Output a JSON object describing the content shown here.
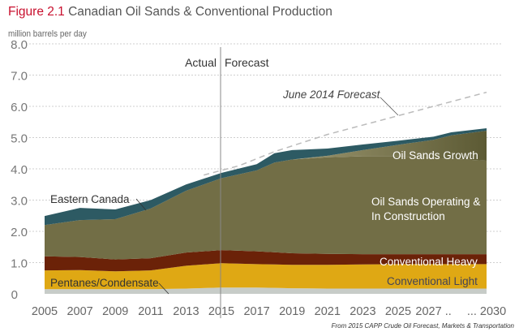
{
  "title": {
    "figure": "Figure 2.1",
    "text": "Canadian Oil Sands & Conventional Production"
  },
  "source": "From 2015 CAPP Crude Oil Forecast, Markets & Transportation",
  "chart_data": {
    "type": "area",
    "stacked": true,
    "title": "Figure 2.1 Canadian Oil Sands & Conventional Production",
    "ylabel": "million barrels per day",
    "xlabel": "",
    "ylim": [
      0,
      8
    ],
    "yticks": [
      0,
      1,
      2,
      3,
      4,
      5,
      6,
      7,
      8
    ],
    "ytick_labels": [
      "0",
      "1.0",
      "2.0",
      "3.0",
      "4.0",
      "5.0",
      "6.0",
      "7.0",
      "8.0"
    ],
    "xlim": [
      2005,
      2030
    ],
    "xticks": [
      2005,
      2007,
      2009,
      2011,
      2013,
      2015,
      2017,
      2019,
      2021,
      2023,
      2025,
      2027,
      2030
    ],
    "xtick_labels": [
      "2005",
      "2007",
      "2009",
      "2011",
      "2013",
      "2015",
      "2017",
      "2019",
      "2021",
      "2023",
      "2025",
      "2027 ..",
      "... 2030"
    ],
    "grid": true,
    "divider": {
      "year": 2015,
      "left_label": "Actual",
      "right_label": "Forecast"
    },
    "x": [
      2005,
      2007,
      2009,
      2011,
      2013,
      2015,
      2017,
      2018,
      2019,
      2021,
      2023,
      2025,
      2027,
      2028,
      2030
    ],
    "series": [
      {
        "name": "Pentanes/Condensate",
        "color": "#c7ccc8",
        "values": [
          0.15,
          0.15,
          0.15,
          0.15,
          0.17,
          0.2,
          0.2,
          0.19,
          0.18,
          0.17,
          0.17,
          0.17,
          0.17,
          0.17,
          0.17
        ]
      },
      {
        "name": "Conventional Light",
        "color": "#dfa814",
        "values": [
          0.6,
          0.61,
          0.57,
          0.6,
          0.73,
          0.78,
          0.75,
          0.75,
          0.75,
          0.76,
          0.77,
          0.78,
          0.78,
          0.78,
          0.78
        ]
      },
      {
        "name": "Conventional Heavy",
        "color": "#6b2208",
        "values": [
          0.45,
          0.42,
          0.38,
          0.39,
          0.42,
          0.42,
          0.41,
          0.39,
          0.37,
          0.35,
          0.33,
          0.32,
          0.32,
          0.32,
          0.32
        ]
      },
      {
        "name": "Oil Sands Operating & In Construction",
        "color": "#726e46",
        "values": [
          1.0,
          1.18,
          1.29,
          1.59,
          1.98,
          2.3,
          2.59,
          2.87,
          3.0,
          3.09,
          3.13,
          3.13,
          3.08,
          3.05,
          2.99
        ]
      },
      {
        "name": "Oil Sands Growth",
        "color": "#8f8a62",
        "values": [
          0,
          0,
          0,
          0,
          0,
          0,
          0,
          0,
          0,
          0.05,
          0.2,
          0.37,
          0.58,
          0.75,
          0.96
        ]
      },
      {
        "name": "Eastern Canada",
        "color": "#2d5a63",
        "values": [
          0.29,
          0.39,
          0.31,
          0.27,
          0.2,
          0.17,
          0.2,
          0.3,
          0.3,
          0.23,
          0.18,
          0.13,
          0.1,
          0.1,
          0.08
        ]
      }
    ],
    "reference_line": {
      "name": "June 2014 Forecast",
      "color": "#bbbbbb",
      "x": [
        2014,
        2016,
        2018,
        2021,
        2025,
        2027,
        2030
      ],
      "values": [
        3.8,
        4.1,
        4.55,
        5.1,
        5.7,
        6.0,
        6.45
      ]
    },
    "annotations": {
      "eastern": "Eastern Canada",
      "pentanes": "Pentanes/Condensate",
      "june": "June 2014 Forecast",
      "growth": "Oil Sands Growth",
      "operating_1": "Oil Sands Operating &",
      "operating_2": "In Construction",
      "heavy": "Conventional Heavy",
      "light": "Conventional Light"
    }
  }
}
